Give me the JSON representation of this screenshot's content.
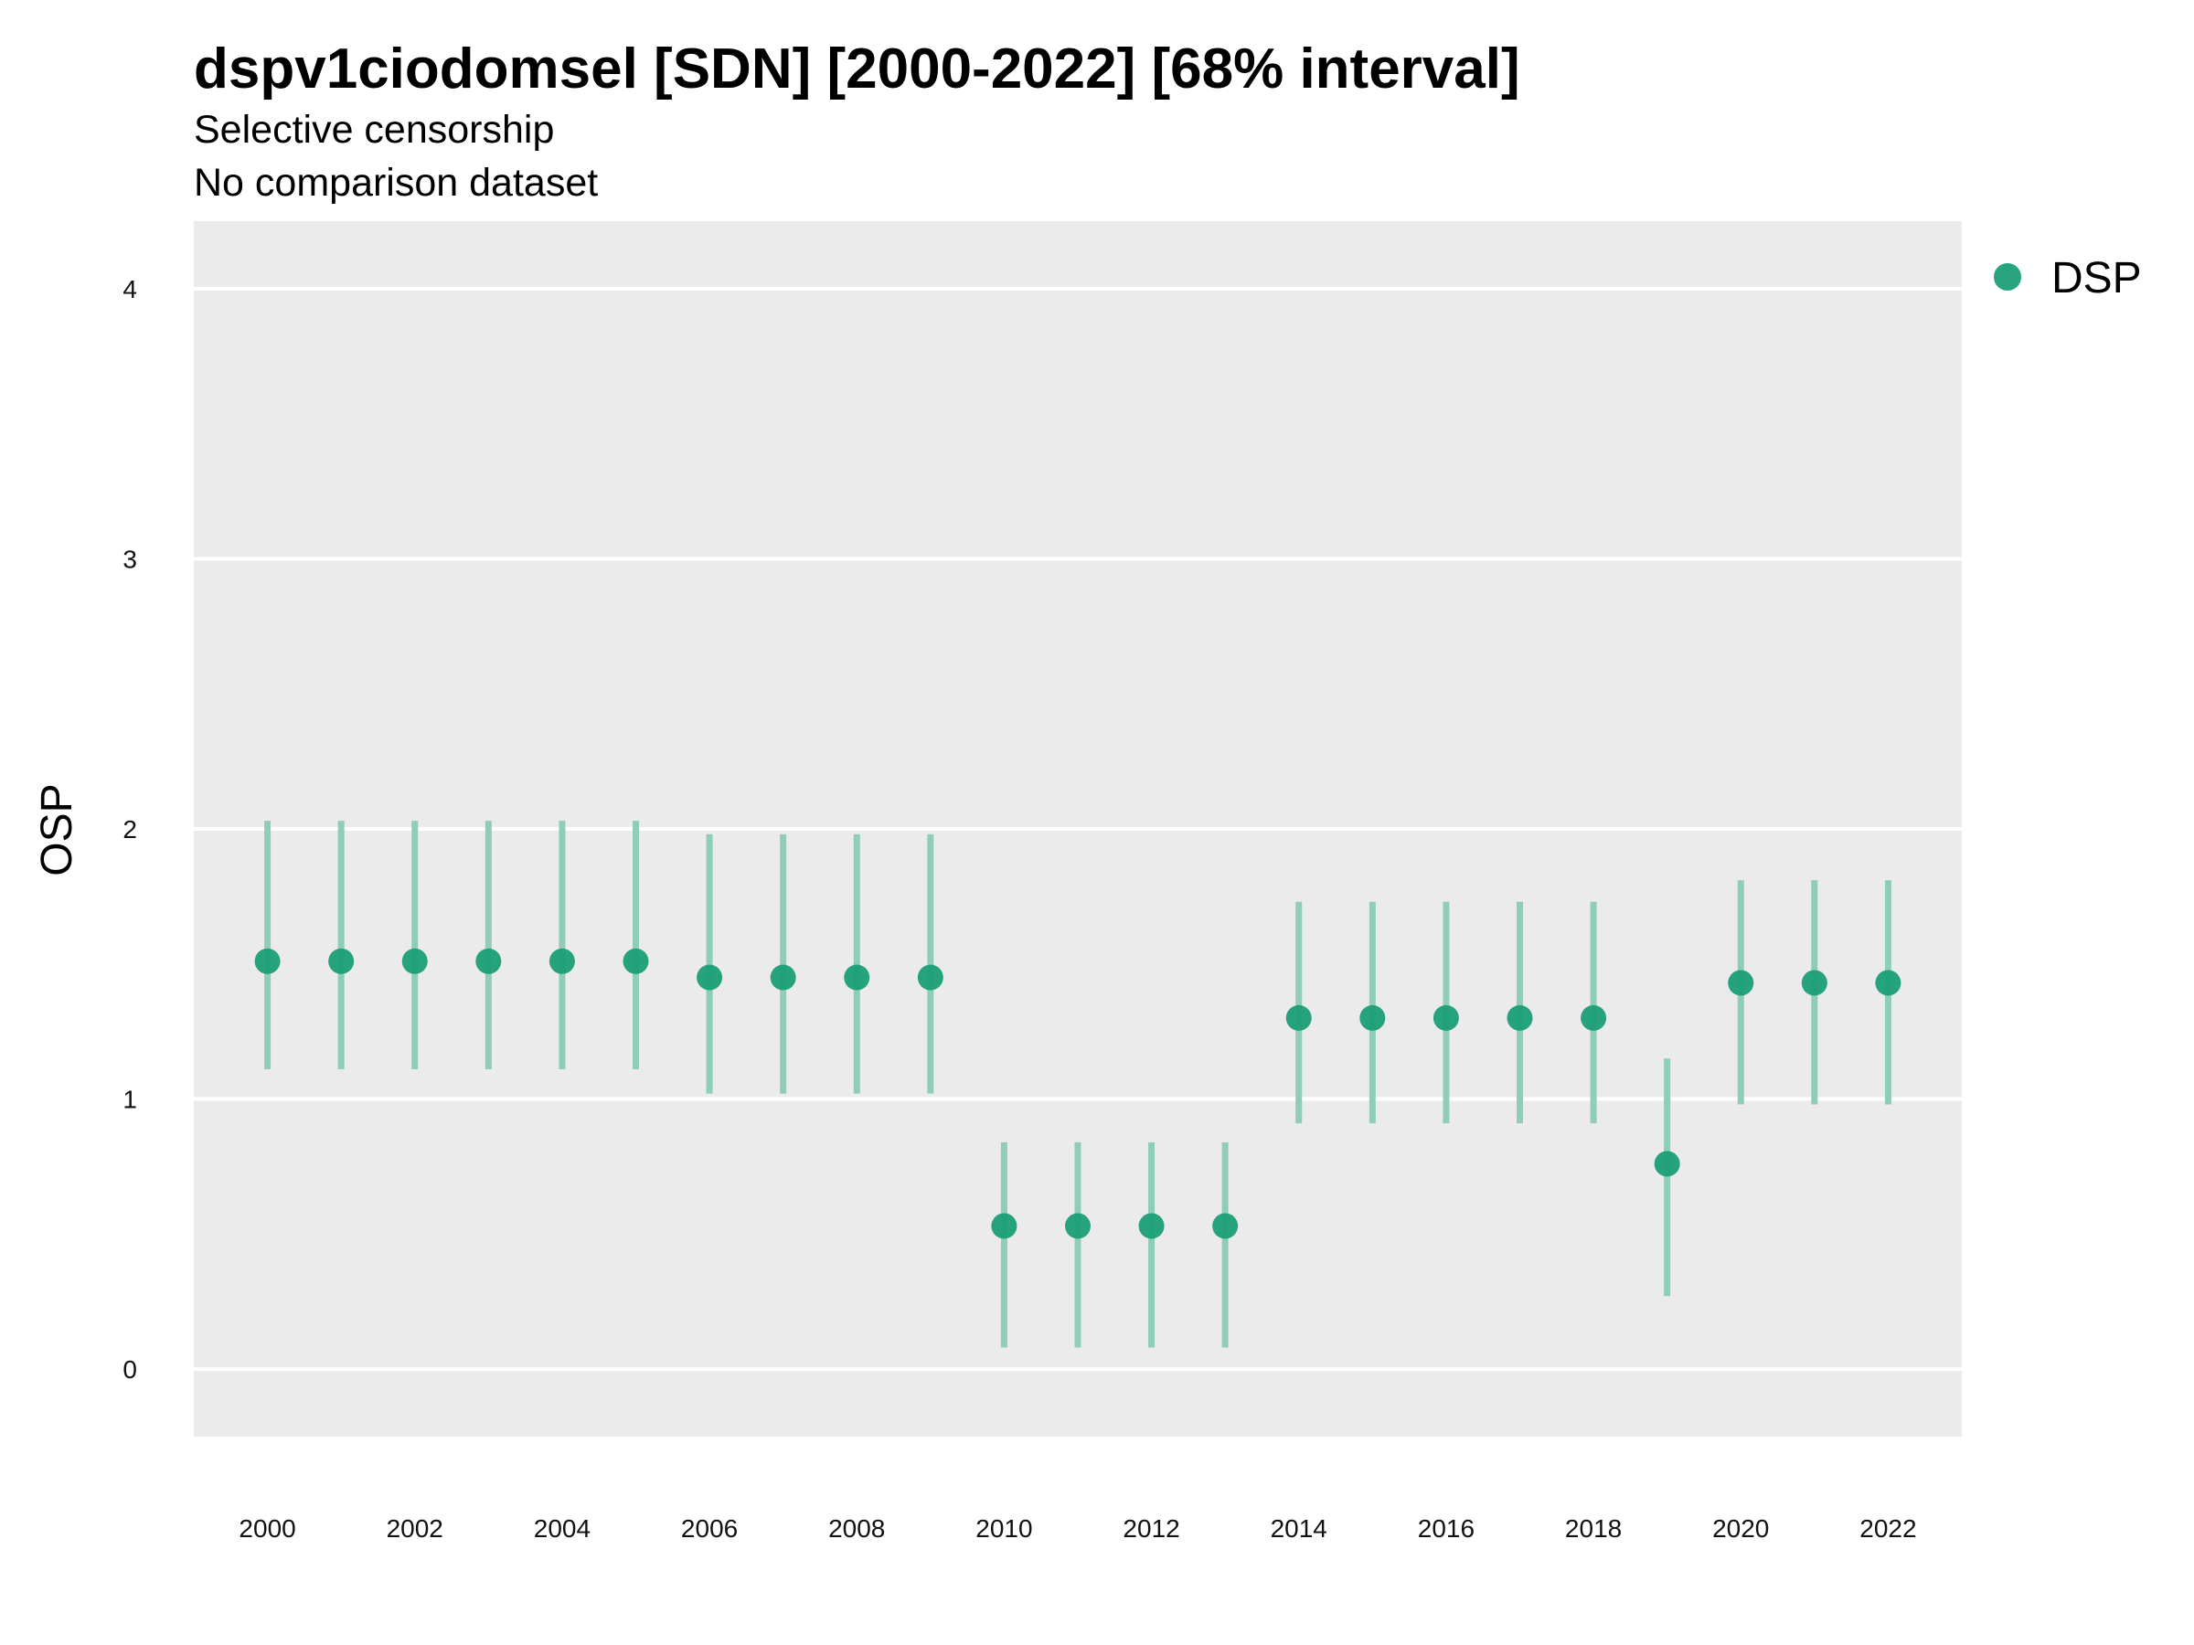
{
  "chart_data": {
    "type": "scatter",
    "title": "dspv1ciodomsel [SDN] [2000-2022] [68% interval]",
    "subtitle_lines": [
      "Selective censorship",
      "No comparison dataset"
    ],
    "xlabel": "",
    "ylabel": "OSP",
    "xlim": [
      1999,
      2023
    ],
    "ylim": [
      -0.25,
      4.25
    ],
    "x_ticks": [
      2000,
      2002,
      2004,
      2006,
      2008,
      2010,
      2012,
      2014,
      2016,
      2018,
      2020,
      2022
    ],
    "y_ticks": [
      0,
      1,
      2,
      3,
      4
    ],
    "grid": true,
    "legend": {
      "placement": "right",
      "entries": [
        "DSP"
      ]
    },
    "colors": {
      "point": "#1b9e77",
      "interval": "#8fcdb8",
      "panel": "#ebebeb",
      "grid": "#ffffff"
    },
    "series": [
      {
        "name": "DSP",
        "x": [
          2000,
          2001,
          2002,
          2003,
          2004,
          2005,
          2006,
          2007,
          2008,
          2009,
          2010,
          2011,
          2012,
          2013,
          2014,
          2015,
          2016,
          2017,
          2018,
          2019,
          2020,
          2021,
          2022
        ],
        "y": [
          1.51,
          1.51,
          1.51,
          1.51,
          1.51,
          1.51,
          1.45,
          1.45,
          1.45,
          1.45,
          0.53,
          0.53,
          0.53,
          0.53,
          1.3,
          1.3,
          1.3,
          1.3,
          1.3,
          0.76,
          1.43,
          1.43,
          1.43
        ],
        "lower": [
          1.11,
          1.11,
          1.11,
          1.11,
          1.11,
          1.11,
          1.02,
          1.02,
          1.02,
          1.02,
          0.08,
          0.08,
          0.08,
          0.08,
          0.91,
          0.91,
          0.91,
          0.91,
          0.91,
          0.27,
          0.98,
          0.98,
          0.98
        ],
        "upper": [
          2.03,
          2.03,
          2.03,
          2.03,
          2.03,
          2.03,
          1.98,
          1.98,
          1.98,
          1.98,
          0.84,
          0.84,
          0.84,
          0.84,
          1.73,
          1.73,
          1.73,
          1.73,
          1.73,
          1.15,
          1.81,
          1.81,
          1.81
        ]
      }
    ]
  }
}
